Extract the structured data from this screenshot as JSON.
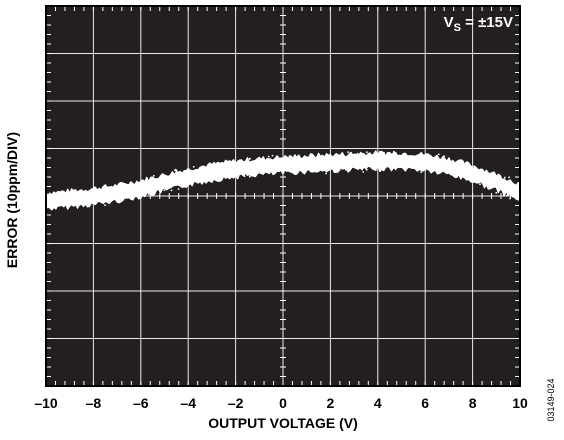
{
  "chart_data": {
    "type": "line",
    "title": "",
    "annotation": {
      "prefix": "V",
      "subscript": "S",
      "suffix": " = ±15V"
    },
    "xlabel": "OUTPUT VOLTAGE (V)",
    "ylabel": "ERROR (10ppm/DIV)",
    "xlim": [
      -10,
      10
    ],
    "ylim": [
      -40,
      40
    ],
    "x_ticks": [
      -10,
      -8,
      -6,
      -4,
      -2,
      0,
      2,
      4,
      6,
      8,
      10
    ],
    "x_tick_labels": [
      "–10",
      "–8",
      "–6",
      "–4",
      "–2",
      "0",
      "2",
      "4",
      "6",
      "8",
      "10"
    ],
    "grid": true,
    "background": "#231f20",
    "trace_color": "#ffffff",
    "series": [
      {
        "x": [
          -10,
          -9,
          -8,
          -7,
          -6,
          -5,
          -4,
          -3,
          -2,
          -1,
          0,
          1,
          2,
          3,
          4,
          5,
          6,
          7,
          8,
          9,
          10
        ],
        "y": [
          -1,
          -0.6,
          -0.1,
          0.6,
          1.6,
          2.8,
          4.0,
          5.0,
          5.7,
          6.2,
          6.5,
          6.8,
          7.0,
          7.2,
          7.4,
          7.4,
          7.1,
          6.2,
          4.8,
          2.9,
          0.8
        ],
        "band_halfwidth": 1.6
      }
    ],
    "figure_id": "03149-024"
  }
}
